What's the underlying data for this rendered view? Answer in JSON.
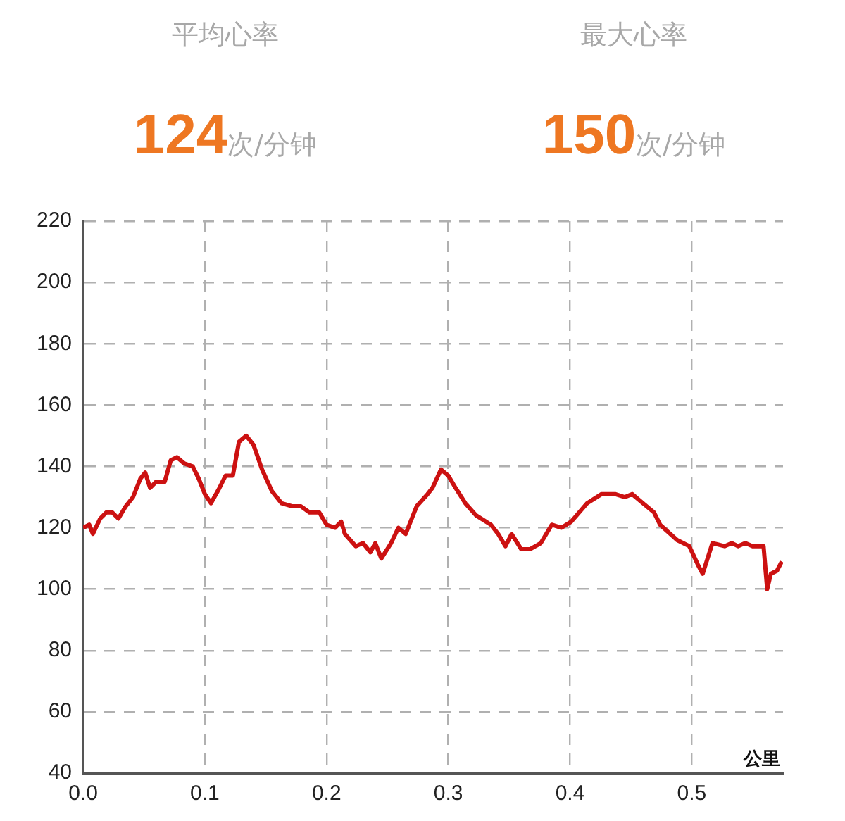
{
  "chart_data": {
    "type": "line",
    "xlabel": "公里",
    "annotations": [
      "平均心率",
      "124次/分钟",
      "最大心率",
      "150次/分钟"
    ],
    "x": [
      0,
      0.005,
      0.008,
      0.014,
      0.019,
      0.024,
      0.029,
      0.035,
      0.041,
      0.047,
      0.051,
      0.055,
      0.06,
      0.067,
      0.072,
      0.077,
      0.083,
      0.09,
      0.095,
      0.1,
      0.105,
      0.112,
      0.117,
      0.123,
      0.128,
      0.134,
      0.14,
      0.147,
      0.155,
      0.163,
      0.172,
      0.179,
      0.186,
      0.194,
      0.2,
      0.207,
      0.212,
      0.215,
      0.224,
      0.23,
      0.236,
      0.24,
      0.245,
      0.253,
      0.259,
      0.265,
      0.274,
      0.283,
      0.287,
      0.294,
      0.3,
      0.306,
      0.314,
      0.323,
      0.335,
      0.341,
      0.347,
      0.352,
      0.36,
      0.367,
      0.376,
      0.385,
      0.393,
      0.401,
      0.414,
      0.426,
      0.437,
      0.445,
      0.451,
      0.46,
      0.469,
      0.474,
      0.488,
      0.498,
      0.505,
      0.509,
      0.517,
      0.527,
      0.533,
      0.538,
      0.544,
      0.55,
      0.559,
      0.562,
      0.565,
      0.57,
      0.574
    ],
    "series": [
      {
        "color": "#cc1111",
        "values": [
          120,
          121,
          118,
          123,
          125,
          125,
          123,
          127,
          130,
          136,
          138,
          133,
          135,
          135,
          142,
          143,
          141,
          140,
          136,
          131,
          128,
          133,
          137,
          137,
          148,
          150,
          147,
          139,
          132,
          128,
          127,
          127,
          125,
          125,
          121,
          120,
          122,
          118,
          114,
          115,
          112,
          115,
          110,
          115,
          120,
          118,
          127,
          131,
          133,
          139,
          137,
          133,
          128,
          124,
          121,
          118,
          114,
          118,
          113,
          113,
          115,
          121,
          120,
          122,
          128,
          131,
          131,
          130,
          131,
          128,
          125,
          121,
          116,
          114,
          108,
          105,
          115,
          114,
          115,
          114,
          115,
          114,
          114,
          100,
          105,
          106,
          109
        ]
      }
    ],
    "xlim": [
      0,
      0.575
    ],
    "ylim": [
      40,
      220
    ],
    "xticks": [
      {
        "value": 0,
        "label": "0.0"
      },
      0.1,
      0.2,
      0.3,
      0.4,
      0.5
    ],
    "yticks": [
      40,
      60,
      80,
      100,
      120,
      140,
      160,
      180,
      200,
      220
    ],
    "grid": true,
    "legend": false,
    "marker": "none",
    "line_style": "solid"
  }
}
